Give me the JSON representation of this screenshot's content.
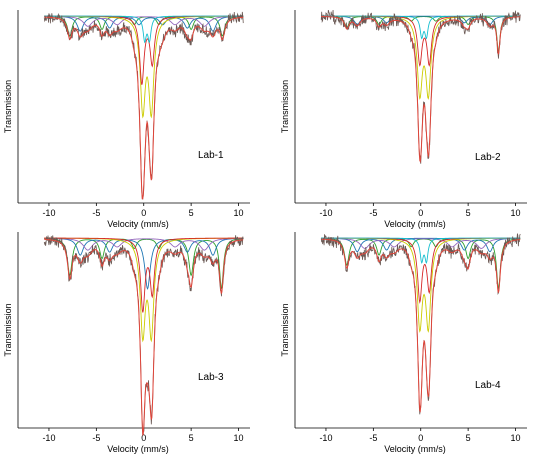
{
  "chart_data": [
    {
      "type": "line",
      "label": "Lab-1",
      "xlabel": "Velocity (mm/s)",
      "ylabel": "Transmission",
      "xlim": [
        -12,
        11
      ],
      "xticks": [
        -10,
        -5,
        0,
        5,
        10
      ],
      "xticklabels": [
        "-10",
        "-5",
        "0",
        "5",
        "10"
      ],
      "components": [
        {
          "color": "#2ca02c",
          "peaks": [
            {
              "x": -7.8,
              "d": 0.12,
              "w": 0.3
            },
            {
              "x": -4.4,
              "d": 0.08,
              "w": 0.3
            },
            {
              "x": -1.0,
              "d": 0.05,
              "w": 0.3
            },
            {
              "x": 1.6,
              "d": 0.05,
              "w": 0.3
            },
            {
              "x": 5.0,
              "d": 0.08,
              "w": 0.3
            },
            {
              "x": 8.3,
              "d": 0.12,
              "w": 0.3
            }
          ]
        },
        {
          "color": "#1f77b4",
          "peaks": [
            {
              "x": -6.7,
              "d": 0.09,
              "w": 0.4
            },
            {
              "x": -3.6,
              "d": 0.07,
              "w": 0.4
            },
            {
              "x": -0.5,
              "d": 0.05,
              "w": 0.4
            },
            {
              "x": 2.0,
              "d": 0.05,
              "w": 0.4
            },
            {
              "x": 4.6,
              "d": 0.07,
              "w": 0.4
            },
            {
              "x": 7.3,
              "d": 0.09,
              "w": 0.4
            }
          ]
        },
        {
          "color": "#9467bd",
          "peaks": [
            {
              "x": -5.9,
              "d": 0.06,
              "w": 0.6
            },
            {
              "x": -2.8,
              "d": 0.05,
              "w": 0.6
            },
            {
              "x": 3.3,
              "d": 0.05,
              "w": 0.6
            },
            {
              "x": 6.4,
              "d": 0.06,
              "w": 0.6
            }
          ]
        },
        {
          "color": "#cccc00",
          "peaks": [
            {
              "x": -0.1,
              "d": 0.55,
              "w": 0.32
            },
            {
              "x": 0.8,
              "d": 0.55,
              "w": 0.32
            }
          ]
        },
        {
          "color": "#d62728",
          "peaks": [
            {
              "x": -0.2,
              "d": 0.4,
              "w": 0.28
            },
            {
              "x": 0.9,
              "d": 0.28,
              "w": 0.28
            }
          ]
        },
        {
          "color": "#17becf",
          "peaks": [
            {
              "x": 0.1,
              "d": 0.14,
              "w": 0.2
            },
            {
              "x": 0.6,
              "d": 0.14,
              "w": 0.2
            }
          ]
        }
      ]
    },
    {
      "type": "line",
      "label": "Lab-2",
      "xlabel": "Velocity (mm/s)",
      "ylabel": "Transmission",
      "xlim": [
        -12,
        11
      ],
      "xticks": [
        -10,
        -5,
        0,
        5,
        10
      ],
      "xticklabels": [
        "-10",
        "-5",
        "0",
        "5",
        "10"
      ],
      "components": [
        {
          "color": "#2ca02c",
          "peaks": [
            {
              "x": -7.8,
              "d": 0.07,
              "w": 0.3
            },
            {
              "x": -4.4,
              "d": 0.05,
              "w": 0.3
            },
            {
              "x": -1.0,
              "d": 0.03,
              "w": 0.3
            },
            {
              "x": 1.6,
              "d": 0.03,
              "w": 0.3
            },
            {
              "x": 5.0,
              "d": 0.05,
              "w": 0.3
            },
            {
              "x": 8.2,
              "d": 0.22,
              "w": 0.2
            }
          ]
        },
        {
          "color": "#1f77b4",
          "peaks": [
            {
              "x": -6.7,
              "d": 0.05,
              "w": 0.4
            },
            {
              "x": -3.6,
              "d": 0.04,
              "w": 0.4
            },
            {
              "x": 4.6,
              "d": 0.04,
              "w": 0.4
            },
            {
              "x": 7.3,
              "d": 0.05,
              "w": 0.4
            }
          ]
        },
        {
          "color": "#cccc00",
          "peaks": [
            {
              "x": -0.1,
              "d": 0.45,
              "w": 0.32
            },
            {
              "x": 0.8,
              "d": 0.45,
              "w": 0.32
            }
          ]
        },
        {
          "color": "#d62728",
          "peaks": [
            {
              "x": -0.1,
              "d": 0.28,
              "w": 0.28
            },
            {
              "x": 0.9,
              "d": 0.28,
              "w": 0.28
            }
          ]
        },
        {
          "color": "#17becf",
          "peaks": [
            {
              "x": 0.1,
              "d": 0.12,
              "w": 0.2
            },
            {
              "x": 0.6,
              "d": 0.12,
              "w": 0.2
            }
          ]
        }
      ]
    },
    {
      "type": "line",
      "label": "Lab-3",
      "xlabel": "Velocity (mm/s)",
      "ylabel": "Transmission",
      "xlim": [
        -12,
        11
      ],
      "xticks": [
        -10,
        -5,
        0,
        5,
        10
      ],
      "xticklabels": [
        "-10",
        "-5",
        "0",
        "5",
        "10"
      ],
      "components": [
        {
          "color": "#2ca02c",
          "peaks": [
            {
              "x": -7.8,
              "d": 0.22,
              "w": 0.3
            },
            {
              "x": -4.4,
              "d": 0.12,
              "w": 0.3
            },
            {
              "x": -1.0,
              "d": 0.06,
              "w": 0.3
            },
            {
              "x": 1.6,
              "d": 0.06,
              "w": 0.3
            },
            {
              "x": 5.0,
              "d": 0.22,
              "w": 0.3
            },
            {
              "x": 8.2,
              "d": 0.3,
              "w": 0.25
            }
          ]
        },
        {
          "color": "#1f77b4",
          "peaks": [
            {
              "x": -6.7,
              "d": 0.1,
              "w": 0.4
            },
            {
              "x": -3.6,
              "d": 0.08,
              "w": 0.4
            },
            {
              "x": 0.4,
              "d": 0.3,
              "w": 0.35
            },
            {
              "x": 4.6,
              "d": 0.08,
              "w": 0.4
            },
            {
              "x": 7.3,
              "d": 0.1,
              "w": 0.4
            }
          ]
        },
        {
          "color": "#9467bd",
          "peaks": [
            {
              "x": -5.9,
              "d": 0.07,
              "w": 0.6
            },
            {
              "x": -2.8,
              "d": 0.05,
              "w": 0.6
            },
            {
              "x": 3.3,
              "d": 0.05,
              "w": 0.6
            },
            {
              "x": 6.4,
              "d": 0.07,
              "w": 0.6
            }
          ]
        },
        {
          "color": "#cccc00",
          "peaks": [
            {
              "x": -0.1,
              "d": 0.55,
              "w": 0.32
            },
            {
              "x": 0.8,
              "d": 0.55,
              "w": 0.32
            }
          ]
        },
        {
          "color": "#d62728",
          "peaks": [
            {
              "x": -0.1,
              "d": 0.42,
              "w": 0.28
            },
            {
              "x": 0.9,
              "d": 0.32,
              "w": 0.28
            }
          ]
        }
      ]
    },
    {
      "type": "line",
      "label": "Lab-4",
      "xlabel": "Velocity (mm/s)",
      "ylabel": "Transmission",
      "xlim": [
        -12,
        11
      ],
      "xticks": [
        -10,
        -5,
        0,
        5,
        10
      ],
      "xticklabels": [
        "-10",
        "-5",
        "0",
        "5",
        "10"
      ],
      "components": [
        {
          "color": "#2ca02c",
          "peaks": [
            {
              "x": -7.8,
              "d": 0.16,
              "w": 0.3
            },
            {
              "x": -4.4,
              "d": 0.1,
              "w": 0.3
            },
            {
              "x": -1.0,
              "d": 0.05,
              "w": 0.3
            },
            {
              "x": 1.6,
              "d": 0.05,
              "w": 0.3
            },
            {
              "x": 5.0,
              "d": 0.12,
              "w": 0.3
            },
            {
              "x": 8.2,
              "d": 0.3,
              "w": 0.25
            }
          ]
        },
        {
          "color": "#1f77b4",
          "peaks": [
            {
              "x": -6.7,
              "d": 0.08,
              "w": 0.4
            },
            {
              "x": -3.6,
              "d": 0.07,
              "w": 0.4
            },
            {
              "x": 4.6,
              "d": 0.07,
              "w": 0.4
            },
            {
              "x": 7.3,
              "d": 0.08,
              "w": 0.4
            }
          ]
        },
        {
          "color": "#9467bd",
          "peaks": [
            {
              "x": -5.9,
              "d": 0.06,
              "w": 0.6
            },
            {
              "x": -2.8,
              "d": 0.05,
              "w": 0.6
            },
            {
              "x": 3.3,
              "d": 0.05,
              "w": 0.6
            },
            {
              "x": 6.4,
              "d": 0.06,
              "w": 0.6
            }
          ]
        },
        {
          "color": "#cccc00",
          "peaks": [
            {
              "x": -0.1,
              "d": 0.5,
              "w": 0.32
            },
            {
              "x": 0.8,
              "d": 0.5,
              "w": 0.32
            }
          ]
        },
        {
          "color": "#d62728",
          "peaks": [
            {
              "x": -0.1,
              "d": 0.36,
              "w": 0.28
            },
            {
              "x": 0.9,
              "d": 0.3,
              "w": 0.28
            }
          ]
        },
        {
          "color": "#17becf",
          "peaks": [
            {
              "x": 0.1,
              "d": 0.13,
              "w": 0.2
            },
            {
              "x": 0.6,
              "d": 0.13,
              "w": 0.2
            }
          ]
        }
      ]
    }
  ],
  "colors": {
    "envelope": "#e0453a",
    "experimental": "#6b5a55"
  }
}
